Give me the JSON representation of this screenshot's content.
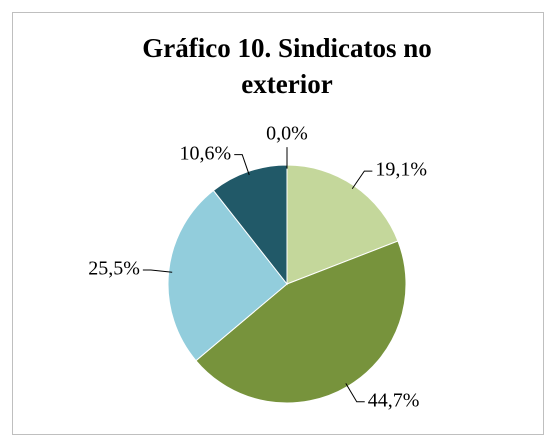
{
  "chart_data": {
    "type": "pie",
    "title": "Gráfico 10. Sindicatos no exterior",
    "values": [
      19.1,
      44.7,
      25.5,
      10.6,
      0.0
    ],
    "value_labels": [
      "19,1%",
      "44,7%",
      "25,5%",
      "10,6%",
      "0,0%"
    ],
    "colors": [
      "#c4d79b",
      "#77933c",
      "#92cddc",
      "#215968",
      "#1f3864"
    ]
  }
}
